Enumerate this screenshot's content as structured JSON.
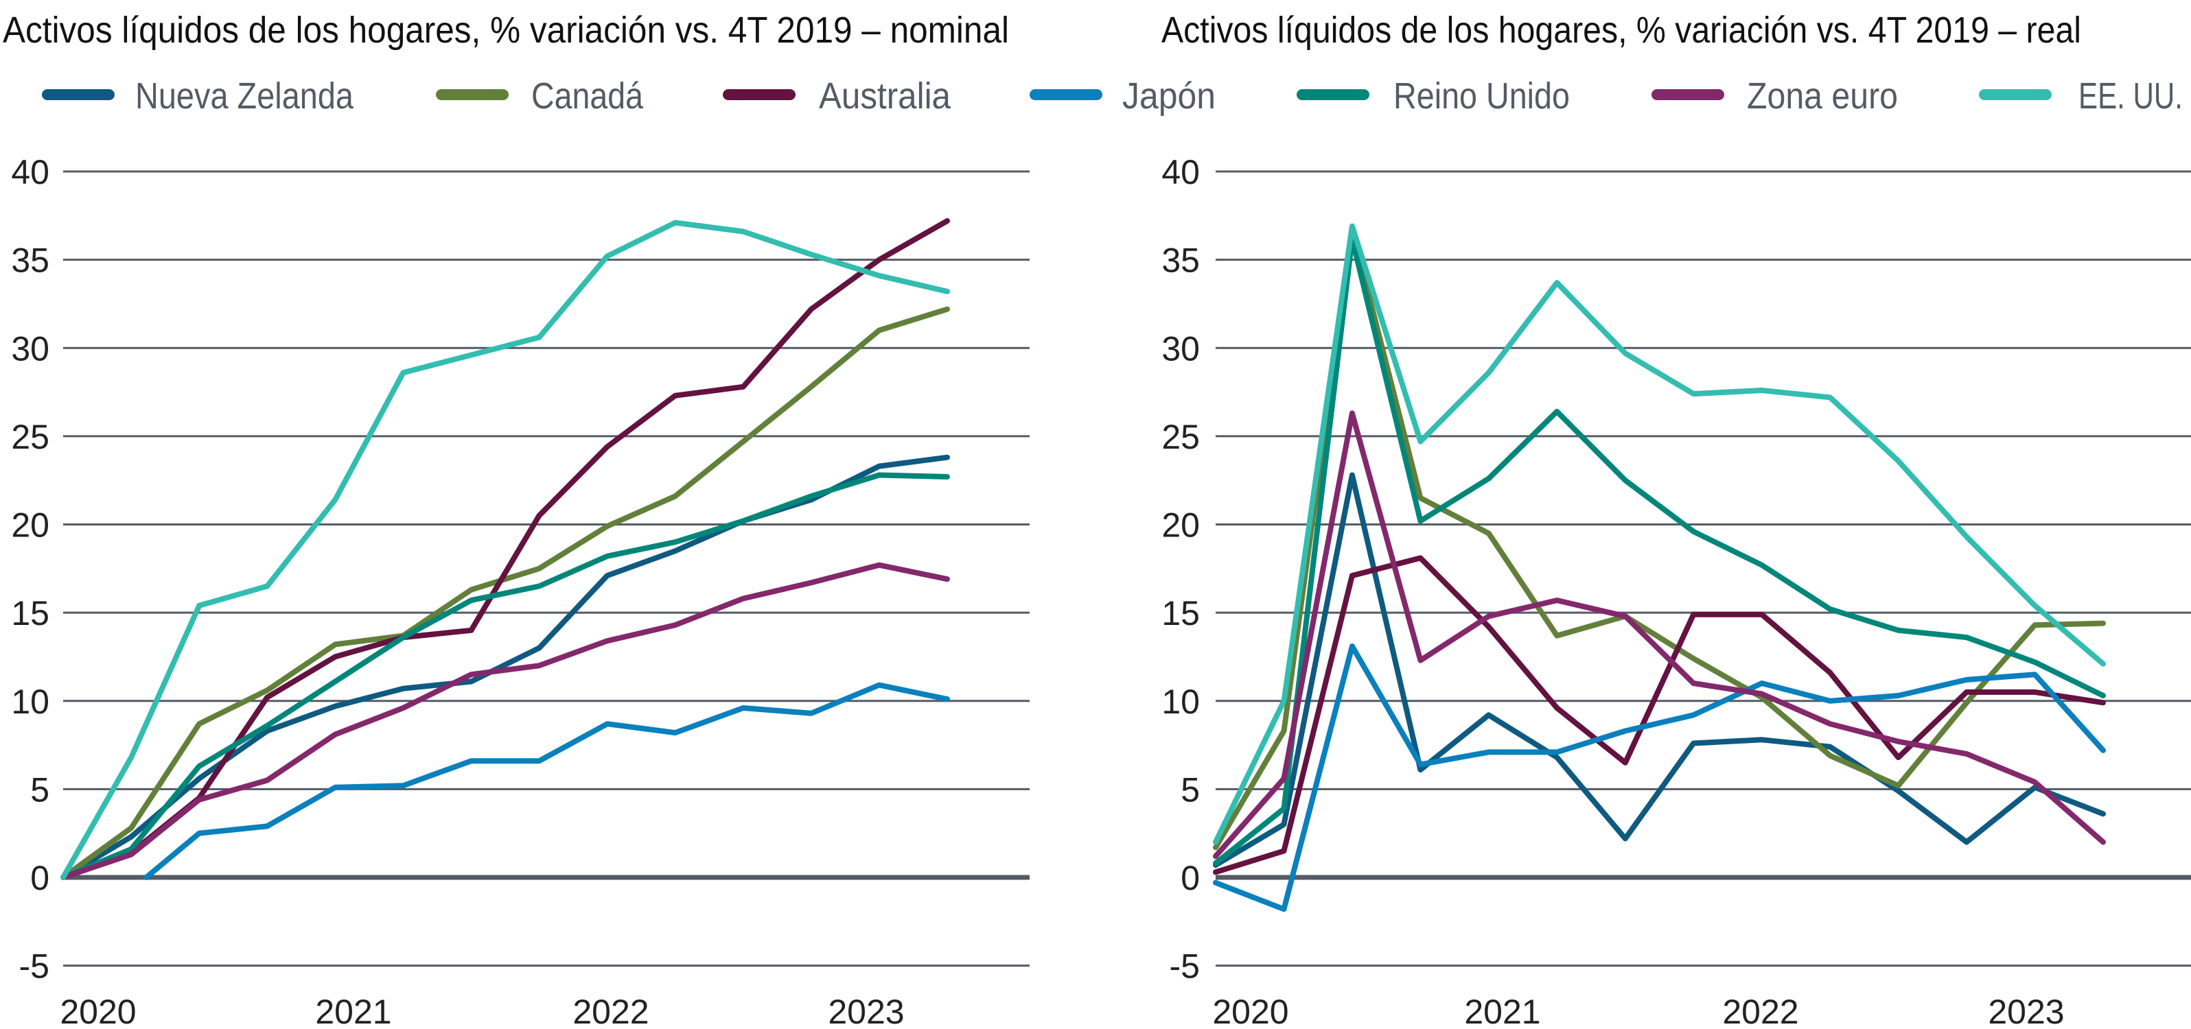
{
  "legend": [
    {
      "name": "Nueva Zelanda",
      "color": "#0f5a80"
    },
    {
      "name": "Canadá",
      "color": "#62803a"
    },
    {
      "name": "Australia",
      "color": "#641240"
    },
    {
      "name": "Japón",
      "color": "#0a80bd"
    },
    {
      "name": "Reino Unido",
      "color": "#00877a"
    },
    {
      "name": "Zona euro",
      "color": "#84286c"
    },
    {
      "name": "EE. UU.",
      "color": "#33bdb0"
    }
  ],
  "chart_data": [
    {
      "type": "line",
      "title": "Activos líquidos de los hogares, % variación vs. 4T 2019 – nominal",
      "x_tick_labels": [
        "2020",
        "2021",
        "2022",
        "2023"
      ],
      "y_ticks": [
        40,
        35,
        30,
        25,
        20,
        15,
        10,
        5,
        0,
        -5
      ],
      "ylim": [
        -5,
        40
      ],
      "grid": true,
      "series": [
        {
          "name": "Nueva Zelanda",
          "values": [
            0,
            2.3,
            5.6,
            8.3,
            9.7,
            10.7,
            11.1,
            13.0,
            17.1,
            18.5,
            20.2,
            21.4,
            23.3,
            23.8
          ]
        },
        {
          "name": "Canadá",
          "values": [
            0,
            2.8,
            8.7,
            10.6,
            13.2,
            13.7,
            16.3,
            17.5,
            19.9,
            21.6,
            24.7,
            27.8,
            31.0,
            32.2
          ]
        },
        {
          "name": "Australia",
          "values": [
            0,
            1.4,
            4.5,
            10.2,
            12.5,
            13.6,
            14.0,
            20.5,
            24.4,
            27.3,
            27.8,
            32.2,
            35.0,
            37.2
          ]
        },
        {
          "name": "Japón",
          "values": [
            null,
            0,
            2.5,
            2.9,
            5.1,
            5.2,
            6.6,
            6.6,
            8.7,
            8.2,
            9.6,
            9.3,
            10.9,
            10.1
          ]
        },
        {
          "name": "Reino Unido",
          "values": [
            0,
            1.6,
            6.3,
            8.6,
            11.1,
            13.6,
            15.7,
            16.5,
            18.2,
            19.0,
            20.2,
            21.6,
            22.8,
            22.7
          ]
        },
        {
          "name": "Zona euro",
          "values": [
            0,
            1.3,
            4.4,
            5.5,
            8.1,
            9.6,
            11.5,
            12.0,
            13.4,
            14.3,
            15.8,
            16.7,
            17.7,
            16.9
          ]
        },
        {
          "name": "EE. UU.",
          "values": [
            0,
            6.8,
            15.4,
            16.5,
            21.4,
            28.6,
            29.6,
            30.6,
            35.2,
            37.1,
            36.6,
            35.3,
            34.1,
            33.2
          ]
        }
      ]
    },
    {
      "type": "line",
      "title": "Activos líquidos de los hogares, % variación vs. 4T 2019 – real",
      "x_tick_labels": [
        "2020",
        "2021",
        "2022",
        "2023"
      ],
      "y_ticks": [
        40,
        35,
        30,
        25,
        20,
        15,
        10,
        5,
        0,
        -5
      ],
      "ylim": [
        -5,
        40
      ],
      "grid": true,
      "series": [
        {
          "name": "Nueva Zelanda",
          "values": [
            0.7,
            3.0,
            22.8,
            6.1,
            9.2,
            6.8,
            2.2,
            7.6,
            7.8,
            7.4,
            4.9,
            2.0,
            5.1,
            3.6
          ]
        },
        {
          "name": "Canadá",
          "values": [
            1.7,
            8.3,
            36.7,
            21.5,
            19.5,
            13.7,
            14.8,
            12.4,
            10.2,
            6.9,
            5.2,
            9.9,
            14.3,
            14.4
          ]
        },
        {
          "name": "Australia",
          "values": [
            0.3,
            1.5,
            17.1,
            18.1,
            14.2,
            9.6,
            6.5,
            14.9,
            14.9,
            11.6,
            6.8,
            10.5,
            10.5,
            9.9
          ]
        },
        {
          "name": "Japón",
          "values": [
            -0.3,
            -1.8,
            13.1,
            6.4,
            7.1,
            7.1,
            8.3,
            9.2,
            11.0,
            10.0,
            10.3,
            11.2,
            11.5,
            7.2
          ]
        },
        {
          "name": "Reino Unido",
          "values": [
            0.8,
            3.9,
            36.2,
            20.2,
            22.6,
            26.4,
            22.5,
            19.6,
            17.7,
            15.2,
            14.0,
            13.6,
            12.2,
            10.3
          ]
        },
        {
          "name": "Zona euro",
          "values": [
            1.2,
            5.6,
            26.3,
            12.3,
            14.8,
            15.7,
            14.8,
            11.0,
            10.4,
            8.7,
            7.7,
            7.0,
            5.4,
            2.0
          ]
        },
        {
          "name": "EE. UU.",
          "values": [
            2.0,
            10.0,
            36.9,
            24.7,
            28.6,
            33.7,
            29.7,
            27.4,
            27.6,
            27.2,
            23.6,
            19.3,
            15.4,
            12.1
          ]
        }
      ]
    }
  ]
}
